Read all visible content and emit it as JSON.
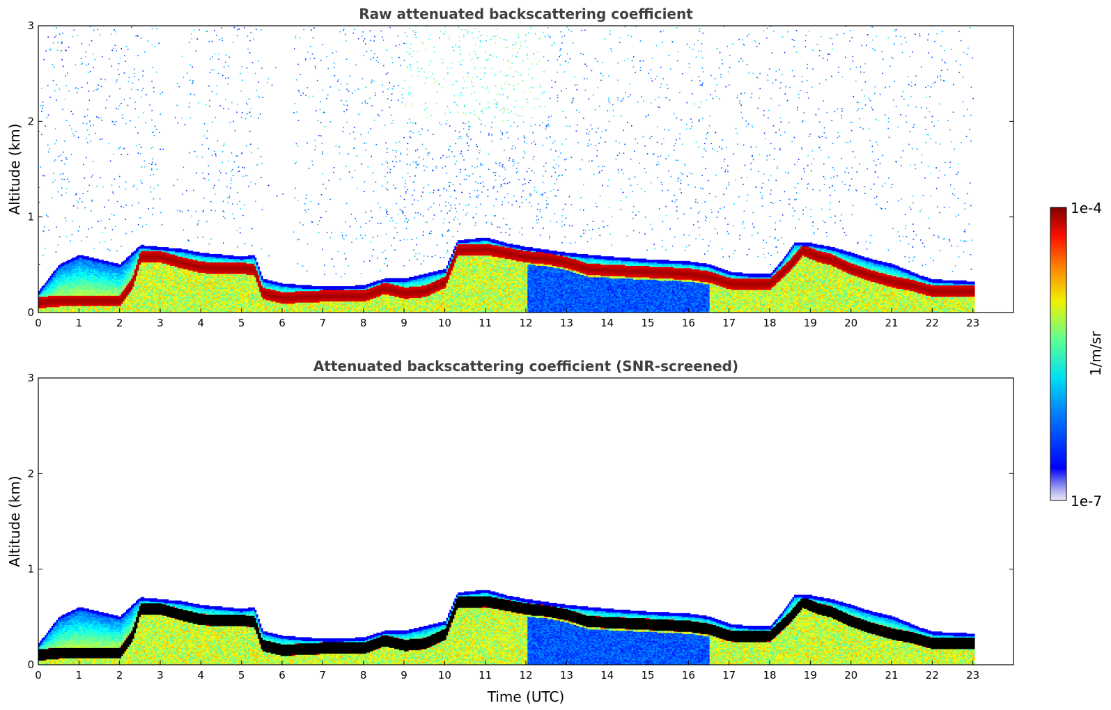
{
  "chart_data": [
    {
      "type": "heatmap",
      "title": "Raw attenuated backscattering coefficient",
      "xlabel": "",
      "ylabel": "Altitude (km)",
      "xlim": [
        0,
        24
      ],
      "ylim": [
        0,
        3
      ],
      "xticks": [
        "0",
        "1",
        "2",
        "3",
        "4",
        "5",
        "6",
        "7",
        "8",
        "9",
        "10",
        "11",
        "12",
        "13",
        "14",
        "15",
        "16",
        "17",
        "18",
        "19",
        "20",
        "21",
        "22",
        "23"
      ],
      "yticks": [
        "0",
        "1",
        "2",
        "3"
      ],
      "grid": false,
      "data_end_time": 23,
      "layer_top_km": [
        [
          0,
          0.22
        ],
        [
          0.5,
          0.5
        ],
        [
          1,
          0.6
        ],
        [
          1.5,
          0.55
        ],
        [
          2,
          0.5
        ],
        [
          2.5,
          0.7
        ],
        [
          3,
          0.68
        ],
        [
          3.5,
          0.66
        ],
        [
          4,
          0.62
        ],
        [
          4.5,
          0.6
        ],
        [
          5,
          0.58
        ],
        [
          5.3,
          0.6
        ],
        [
          5.5,
          0.35
        ],
        [
          6,
          0.3
        ],
        [
          6.5,
          0.28
        ],
        [
          7,
          0.27
        ],
        [
          7.5,
          0.27
        ],
        [
          8,
          0.28
        ],
        [
          8.5,
          0.35
        ],
        [
          9,
          0.35
        ],
        [
          9.5,
          0.4
        ],
        [
          10,
          0.45
        ],
        [
          10.3,
          0.75
        ],
        [
          11,
          0.78
        ],
        [
          11.5,
          0.72
        ],
        [
          12,
          0.68
        ],
        [
          12.5,
          0.65
        ],
        [
          13,
          0.62
        ],
        [
          13.5,
          0.6
        ],
        [
          14,
          0.58
        ],
        [
          15,
          0.55
        ],
        [
          16,
          0.53
        ],
        [
          16.5,
          0.5
        ],
        [
          17,
          0.42
        ],
        [
          17.5,
          0.4
        ],
        [
          18,
          0.4
        ],
        [
          18.3,
          0.55
        ],
        [
          18.6,
          0.73
        ],
        [
          19,
          0.72
        ],
        [
          19.5,
          0.68
        ],
        [
          20,
          0.62
        ],
        [
          20.5,
          0.55
        ],
        [
          21,
          0.5
        ],
        [
          21.3,
          0.45
        ],
        [
          21.7,
          0.38
        ],
        [
          22,
          0.34
        ],
        [
          22.5,
          0.33
        ],
        [
          23,
          0.32
        ]
      ],
      "peak_altitude_km": [
        [
          0,
          0.1
        ],
        [
          0.5,
          0.12
        ],
        [
          1,
          0.12
        ],
        [
          1.5,
          0.12
        ],
        [
          2,
          0.12
        ],
        [
          2.3,
          0.3
        ],
        [
          2.5,
          0.58
        ],
        [
          3,
          0.58
        ],
        [
          3.5,
          0.52
        ],
        [
          4,
          0.47
        ],
        [
          4.5,
          0.46
        ],
        [
          5,
          0.46
        ],
        [
          5.3,
          0.45
        ],
        [
          5.5,
          0.2
        ],
        [
          6,
          0.15
        ],
        [
          6.5,
          0.16
        ],
        [
          7,
          0.17
        ],
        [
          7.5,
          0.17
        ],
        [
          8,
          0.17
        ],
        [
          8.5,
          0.25
        ],
        [
          9,
          0.2
        ],
        [
          9.5,
          0.22
        ],
        [
          10,
          0.32
        ],
        [
          10.3,
          0.65
        ],
        [
          11,
          0.66
        ],
        [
          11.5,
          0.62
        ],
        [
          12,
          0.58
        ],
        [
          12.5,
          0.56
        ],
        [
          13,
          0.52
        ],
        [
          13.5,
          0.45
        ],
        [
          14,
          0.44
        ],
        [
          15,
          0.42
        ],
        [
          16,
          0.4
        ],
        [
          16.5,
          0.37
        ],
        [
          17,
          0.3
        ],
        [
          17.5,
          0.29
        ],
        [
          18,
          0.3
        ],
        [
          18.5,
          0.5
        ],
        [
          18.8,
          0.65
        ],
        [
          19.2,
          0.58
        ],
        [
          19.5,
          0.55
        ],
        [
          20,
          0.45
        ],
        [
          20.5,
          0.38
        ],
        [
          21,
          0.32
        ],
        [
          21.5,
          0.28
        ],
        [
          22,
          0.22
        ],
        [
          22.5,
          0.22
        ],
        [
          23,
          0.22
        ]
      ]
    },
    {
      "type": "heatmap",
      "title": "Attenuated backscattering coefficient (SNR-screened)",
      "xlabel": "Time (UTC)",
      "ylabel": "Altitude (km)",
      "xlim": [
        0,
        24
      ],
      "ylim": [
        0,
        3
      ],
      "xticks": [
        "0",
        "1",
        "2",
        "3",
        "4",
        "5",
        "6",
        "7",
        "8",
        "9",
        "10",
        "11",
        "12",
        "13",
        "14",
        "15",
        "16",
        "17",
        "18",
        "19",
        "20",
        "21",
        "22",
        "23"
      ],
      "yticks": [
        "0",
        "1",
        "2",
        "3"
      ],
      "grid": false,
      "data_end_time": 23
    }
  ],
  "colorbar": {
    "label": "1/m/sr",
    "max_label": "1e-4",
    "min_label": "1e-7",
    "scale": "log",
    "range": [
      1e-07,
      0.0001
    ],
    "colormap": "jet",
    "low_colors": [
      "#e6e6f8",
      "#b8b8f0",
      "#8a8ae8"
    ]
  },
  "colors": {
    "axis": "#000000",
    "title_text": "#404040",
    "saturated_peak_screened": "#000000"
  }
}
